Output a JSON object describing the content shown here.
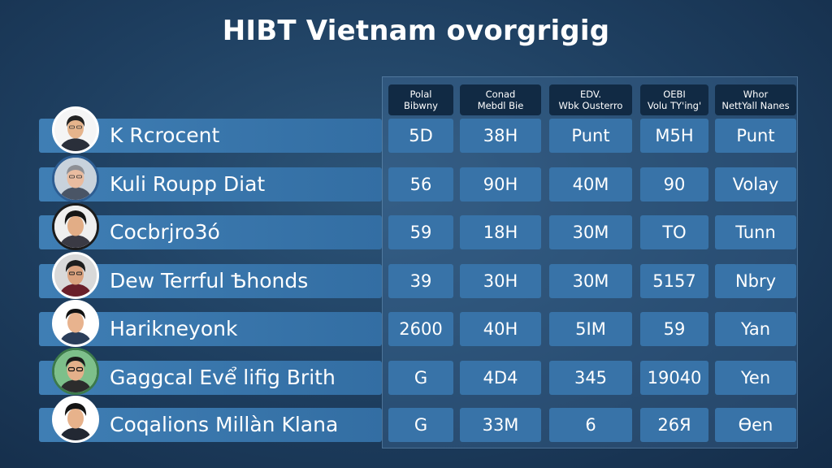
{
  "title": "HIBT Vietnam ovorgrigig",
  "headers": [
    {
      "line1": "Polal",
      "line2": "Bibwny"
    },
    {
      "line1": "Conad",
      "line2": "Mebdl Bie"
    },
    {
      "line1": "EDV.",
      "line2": "Wbk Ousterro"
    },
    {
      "line1": "OEBI",
      "line2": "Volu TY'ing'"
    },
    {
      "line1": "Whor",
      "line2": "NettYall Nanes"
    }
  ],
  "rows": [
    {
      "name": "K Rcrocent",
      "cells": [
        "5D",
        "38H",
        "Punt",
        "M5H",
        "Punt"
      ]
    },
    {
      "name": "Kuli Roupp Diat",
      "cells": [
        "56",
        "90H",
        "40M",
        "90",
        "Volay"
      ]
    },
    {
      "name": "Cocbrjro3ó",
      "cells": [
        "59",
        "18H",
        "30M",
        "TO",
        "Tunn"
      ]
    },
    {
      "name": "Dew Terrful Ѣhonds",
      "cells": [
        "39",
        "30H",
        "30M",
        "5157",
        "Nbry"
      ]
    },
    {
      "name": "Harikneyonk",
      "cells": [
        "2600",
        "40H",
        "5IM",
        "59",
        "Yan"
      ]
    },
    {
      "name": "Gaggcal Evể lifig Brith",
      "cells": [
        "G",
        "4D4",
        "345",
        "19040",
        "Yen"
      ]
    },
    {
      "name": "Coqalions Millàn Klana",
      "cells": [
        "G",
        "33M",
        "6",
        "26Я",
        "Ѳen"
      ]
    }
  ],
  "colors": {
    "background": "#1d3d5e",
    "row_bar": "#3f7eb4",
    "cell": "#3873a8",
    "header_cell": "#112a44",
    "text": "#ffffff"
  },
  "icons": [
    "avatar-1",
    "avatar-2",
    "avatar-3",
    "avatar-4",
    "avatar-5",
    "avatar-6",
    "avatar-7"
  ]
}
